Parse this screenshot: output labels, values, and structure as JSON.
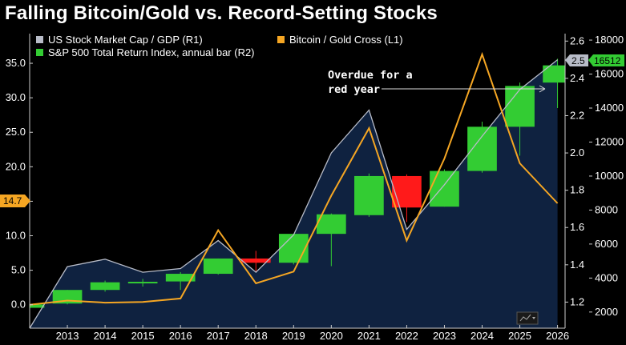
{
  "title": "Falling Bitcoin/Gold vs. Record-Setting Stocks",
  "legend": {
    "mktcap": "US Stock Market Cap / GDP  (R1)",
    "btcgold": "Bitcoin / Gold Cross  (L1)",
    "sp500": "S&P 500 Total Return Index, annual bar (R2)"
  },
  "annotation": {
    "line1": "Overdue for a",
    "line2": "red year"
  },
  "tags": {
    "left": "14.7",
    "right1": "2.5",
    "right2": "16512"
  },
  "colors": {
    "mktcap": "#b8bcc8",
    "btcgold": "#f5a623",
    "up": "#33cc33",
    "down": "#ff1a1a",
    "area": "#0f2240",
    "axis": "#cccccc"
  },
  "chart_data": {
    "type": "area",
    "x_labels": [
      "2013",
      "2014",
      "2015",
      "2016",
      "2017",
      "2018",
      "2019",
      "2020",
      "2021",
      "2022",
      "2023",
      "2024",
      "2025",
      "2026"
    ],
    "x_range": [
      2012,
      2026.2
    ],
    "axes": {
      "left_L1": {
        "ticks": [
          0.0,
          5.0,
          10.0,
          15.0,
          20.0,
          25.0,
          30.0,
          35.0
        ],
        "tick_labels": [
          "0.0",
          "5.0",
          "10.0",
          "15.0",
          "20.0",
          "25.0",
          "30.0",
          "35.0"
        ],
        "range": [
          -3.4,
          39.3
        ]
      },
      "right_R1": {
        "ticks": [
          1.2,
          1.4,
          1.6,
          1.8,
          2.0,
          2.2,
          2.4,
          2.6
        ],
        "tick_labels": [
          "1.2",
          "1.4",
          "1.6",
          "1.8",
          "2.0",
          "2.2",
          "2.4",
          "2.6"
        ],
        "range": [
          1.06,
          2.64
        ]
      },
      "right_R2": {
        "ticks": [
          2000,
          4000,
          6000,
          8000,
          10000,
          12000,
          14000,
          16000,
          18000
        ],
        "tick_labels": [
          "2000",
          "4000",
          "6000",
          "8000",
          "10000",
          "12000",
          "14000",
          "16000",
          "18000"
        ],
        "range": [
          1050,
          18380
        ]
      }
    },
    "series": [
      {
        "name": "US Stock Market Cap / GDP  (R1)",
        "axis": "R1",
        "type": "area",
        "x": [
          2012,
          2013,
          2014,
          2015,
          2016,
          2017,
          2018,
          2019,
          2020,
          2021,
          2022,
          2023,
          2024,
          2025,
          2026
        ],
        "y": [
          1.06,
          1.39,
          1.43,
          1.36,
          1.38,
          1.53,
          1.36,
          1.56,
          2.0,
          2.23,
          1.59,
          1.83,
          2.09,
          2.34,
          2.5
        ]
      },
      {
        "name": "Bitcoin / Gold Cross  (L1)",
        "axis": "L1",
        "type": "line",
        "x": [
          2012,
          2013,
          2014,
          2015,
          2016,
          2017,
          2018,
          2019,
          2020,
          2021,
          2022,
          2023,
          2024,
          2025,
          2026
        ],
        "y": [
          0.0,
          0.6,
          0.3,
          0.4,
          0.9,
          10.8,
          3.1,
          4.8,
          15.8,
          25.6,
          9.3,
          21.2,
          36.3,
          20.5,
          14.7
        ]
      },
      {
        "name": "S&P 500 Total Return Index, annual bar (R2)",
        "axis": "R2",
        "type": "candlestick",
        "bars": [
          {
            "x": 2012,
            "open": 2250,
            "close": 2450,
            "high": 2450,
            "low": 2150
          },
          {
            "x": 2013,
            "open": 2500,
            "close": 3300,
            "high": 3300,
            "low": 2450
          },
          {
            "x": 2014,
            "open": 3300,
            "close": 3750,
            "high": 3850,
            "low": 3200
          },
          {
            "x": 2015,
            "open": 3750,
            "close": 3780,
            "high": 3950,
            "low": 3500
          },
          {
            "x": 2016,
            "open": 3800,
            "close": 4250,
            "high": 4350,
            "low": 3300
          },
          {
            "x": 2017,
            "open": 4250,
            "close": 5150,
            "high": 5150,
            "low": 4200
          },
          {
            "x": 2018,
            "open": 5150,
            "close": 4900,
            "high": 5600,
            "low": 4400
          },
          {
            "x": 2019,
            "open": 4900,
            "close": 6600,
            "high": 6600,
            "low": 4800
          },
          {
            "x": 2020,
            "open": 6600,
            "close": 7750,
            "high": 7800,
            "low": 4700
          },
          {
            "x": 2021,
            "open": 7700,
            "close": 10000,
            "high": 10150,
            "low": 7600
          },
          {
            "x": 2022,
            "open": 10000,
            "close": 8150,
            "high": 10100,
            "low": 7300
          },
          {
            "x": 2023,
            "open": 8200,
            "close": 10300,
            "high": 10400,
            "low": 8200
          },
          {
            "x": 2024,
            "open": 10300,
            "close": 12900,
            "high": 13200,
            "low": 10200
          },
          {
            "x": 2025,
            "open": 12900,
            "close": 15300,
            "high": 15500,
            "low": 11200
          },
          {
            "x": 2026,
            "open": 15500,
            "close": 16512,
            "high": 16900,
            "low": 14000
          }
        ]
      }
    ],
    "annotations": [
      "Overdue for a red year"
    ],
    "last_values": {
      "L1": 14.7,
      "R1": 2.5,
      "R2": 16512
    },
    "legend_position": "top-left",
    "grid": false
  }
}
